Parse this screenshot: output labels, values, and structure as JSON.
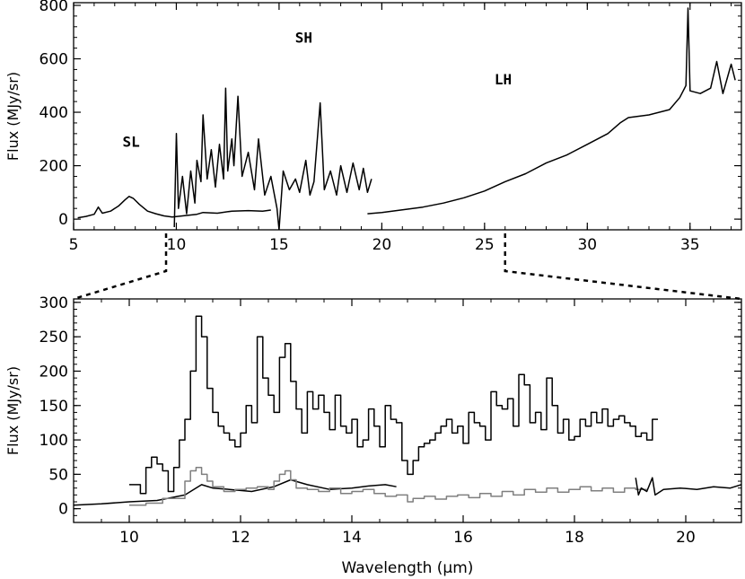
{
  "chart_data": [
    {
      "type": "line",
      "panel": "top",
      "title": "",
      "xlabel": "",
      "ylabel": "Flux (MJy/sr)",
      "xlim": [
        5,
        37.5
      ],
      "ylim": [
        -40,
        810
      ],
      "xticks": [
        5,
        10,
        15,
        20,
        25,
        30,
        35
      ],
      "yticks": [
        0,
        200,
        400,
        600,
        800
      ],
      "annotations": [
        {
          "text": "SL",
          "x": 7.8,
          "y": 270
        },
        {
          "text": "SH",
          "x": 16.2,
          "y": 660
        },
        {
          "text": "LH",
          "x": 25.9,
          "y": 505
        }
      ],
      "series": [
        {
          "module": "SL",
          "color": "#000000",
          "points": [
            [
              5.2,
              5
            ],
            [
              5.6,
              10
            ],
            [
              6.0,
              18
            ],
            [
              6.2,
              45
            ],
            [
              6.4,
              22
            ],
            [
              6.8,
              30
            ],
            [
              7.2,
              50
            ],
            [
              7.5,
              72
            ],
            [
              7.7,
              85
            ],
            [
              7.9,
              78
            ],
            [
              8.2,
              55
            ],
            [
              8.6,
              30
            ],
            [
              9.0,
              20
            ],
            [
              9.4,
              12
            ],
            [
              9.8,
              8
            ],
            [
              10.3,
              12
            ],
            [
              11.0,
              18
            ],
            [
              11.3,
              25
            ],
            [
              12.0,
              22
            ],
            [
              12.7,
              30
            ],
            [
              13.5,
              32
            ],
            [
              14.2,
              30
            ],
            [
              14.6,
              34
            ]
          ]
        },
        {
          "module": "SH",
          "color": "#000000",
          "points": [
            [
              9.9,
              -30
            ],
            [
              10.0,
              320
            ],
            [
              10.1,
              40
            ],
            [
              10.3,
              160
            ],
            [
              10.5,
              20
            ],
            [
              10.7,
              180
            ],
            [
              10.9,
              60
            ],
            [
              11.0,
              220
            ],
            [
              11.2,
              140
            ],
            [
              11.3,
              390
            ],
            [
              11.5,
              150
            ],
            [
              11.7,
              260
            ],
            [
              11.9,
              120
            ],
            [
              12.1,
              280
            ],
            [
              12.3,
              150
            ],
            [
              12.4,
              490
            ],
            [
              12.5,
              180
            ],
            [
              12.7,
              300
            ],
            [
              12.8,
              200
            ],
            [
              13.0,
              460
            ],
            [
              13.2,
              160
            ],
            [
              13.5,
              250
            ],
            [
              13.8,
              110
            ],
            [
              14.0,
              300
            ],
            [
              14.3,
              90
            ],
            [
              14.6,
              160
            ],
            [
              14.9,
              40
            ],
            [
              15.0,
              -40
            ],
            [
              15.2,
              180
            ],
            [
              15.5,
              110
            ],
            [
              15.8,
              150
            ],
            [
              16.0,
              100
            ],
            [
              16.3,
              220
            ],
            [
              16.5,
              90
            ],
            [
              16.7,
              140
            ],
            [
              17.0,
              435
            ],
            [
              17.2,
              110
            ],
            [
              17.5,
              180
            ],
            [
              17.8,
              90
            ],
            [
              18.0,
              200
            ],
            [
              18.3,
              100
            ],
            [
              18.6,
              210
            ],
            [
              18.9,
              110
            ],
            [
              19.1,
              190
            ],
            [
              19.3,
              100
            ],
            [
              19.5,
              150
            ]
          ]
        },
        {
          "module": "LH",
          "color": "#000000",
          "points": [
            [
              19.3,
              20
            ],
            [
              20.0,
              25
            ],
            [
              21.0,
              35
            ],
            [
              22.0,
              45
            ],
            [
              23.0,
              60
            ],
            [
              24.0,
              80
            ],
            [
              25.0,
              105
            ],
            [
              26.0,
              140
            ],
            [
              27.0,
              170
            ],
            [
              28.0,
              210
            ],
            [
              29.0,
              240
            ],
            [
              30.0,
              280
            ],
            [
              31.0,
              320
            ],
            [
              31.6,
              360
            ],
            [
              32.0,
              380
            ],
            [
              33.0,
              390
            ],
            [
              34.0,
              410
            ],
            [
              34.5,
              455
            ],
            [
              34.8,
              500
            ],
            [
              34.9,
              790
            ],
            [
              35.0,
              480
            ],
            [
              35.5,
              470
            ],
            [
              36.0,
              490
            ],
            [
              36.3,
              590
            ],
            [
              36.6,
              470
            ],
            [
              37.0,
              580
            ],
            [
              37.2,
              520
            ]
          ]
        }
      ]
    },
    {
      "type": "line",
      "panel": "bottom",
      "title": "",
      "xlabel": "Wavelength (μm)",
      "ylabel": "Flux (MJy/sr)",
      "xlim": [
        9,
        21
      ],
      "ylim": [
        -20,
        305
      ],
      "xticks": [
        10,
        12,
        14,
        16,
        18,
        20
      ],
      "yticks": [
        0,
        50,
        100,
        150,
        200,
        250,
        300
      ],
      "series": [
        {
          "module": "SH (black, stepped)",
          "color": "#000000",
          "steps": [
            [
              10.0,
              35
            ],
            [
              10.2,
              22
            ],
            [
              10.3,
              60
            ],
            [
              10.4,
              75
            ],
            [
              10.5,
              65
            ],
            [
              10.6,
              55
            ],
            [
              10.7,
              25
            ],
            [
              10.8,
              60
            ],
            [
              10.9,
              100
            ],
            [
              11.0,
              130
            ],
            [
              11.1,
              200
            ],
            [
              11.2,
              280
            ],
            [
              11.3,
              250
            ],
            [
              11.4,
              175
            ],
            [
              11.5,
              140
            ],
            [
              11.6,
              120
            ],
            [
              11.7,
              110
            ],
            [
              11.8,
              100
            ],
            [
              11.9,
              90
            ],
            [
              12.0,
              110
            ],
            [
              12.1,
              150
            ],
            [
              12.2,
              125
            ],
            [
              12.3,
              250
            ],
            [
              12.4,
              190
            ],
            [
              12.5,
              165
            ],
            [
              12.6,
              140
            ],
            [
              12.7,
              220
            ],
            [
              12.8,
              240
            ],
            [
              12.9,
              185
            ],
            [
              13.0,
              145
            ],
            [
              13.1,
              110
            ],
            [
              13.2,
              170
            ],
            [
              13.3,
              145
            ],
            [
              13.4,
              165
            ],
            [
              13.5,
              140
            ],
            [
              13.6,
              115
            ],
            [
              13.7,
              165
            ],
            [
              13.8,
              120
            ],
            [
              13.9,
              110
            ],
            [
              14.0,
              130
            ],
            [
              14.1,
              90
            ],
            [
              14.2,
              100
            ],
            [
              14.3,
              145
            ],
            [
              14.4,
              120
            ],
            [
              14.5,
              90
            ],
            [
              14.6,
              150
            ],
            [
              14.7,
              130
            ],
            [
              14.8,
              125
            ],
            [
              14.9,
              70
            ],
            [
              15.0,
              50
            ],
            [
              15.1,
              70
            ],
            [
              15.2,
              90
            ],
            [
              15.3,
              95
            ],
            [
              15.4,
              100
            ],
            [
              15.5,
              110
            ],
            [
              15.6,
              120
            ],
            [
              15.7,
              130
            ],
            [
              15.8,
              110
            ],
            [
              15.9,
              120
            ],
            [
              16.0,
              95
            ],
            [
              16.1,
              140
            ],
            [
              16.2,
              125
            ],
            [
              16.3,
              120
            ],
            [
              16.4,
              100
            ],
            [
              16.5,
              170
            ],
            [
              16.6,
              150
            ],
            [
              16.7,
              145
            ],
            [
              16.8,
              160
            ],
            [
              16.9,
              120
            ],
            [
              17.0,
              195
            ],
            [
              17.1,
              180
            ],
            [
              17.2,
              125
            ],
            [
              17.3,
              140
            ],
            [
              17.4,
              115
            ],
            [
              17.5,
              190
            ],
            [
              17.6,
              150
            ],
            [
              17.7,
              110
            ],
            [
              17.8,
              130
            ],
            [
              17.9,
              100
            ],
            [
              18.0,
              105
            ],
            [
              18.1,
              130
            ],
            [
              18.2,
              120
            ],
            [
              18.3,
              140
            ],
            [
              18.4,
              125
            ],
            [
              18.5,
              145
            ],
            [
              18.6,
              120
            ],
            [
              18.7,
              130
            ],
            [
              18.8,
              135
            ],
            [
              18.9,
              125
            ],
            [
              19.0,
              120
            ],
            [
              19.1,
              105
            ],
            [
              19.2,
              110
            ],
            [
              19.3,
              100
            ],
            [
              19.4,
              130
            ]
          ],
          "end": 19.5
        },
        {
          "module": "SL (black, smooth)",
          "color": "#000000",
          "points": [
            [
              9.0,
              5
            ],
            [
              9.5,
              7
            ],
            [
              10.0,
              10
            ],
            [
              10.5,
              12
            ],
            [
              11.0,
              20
            ],
            [
              11.3,
              35
            ],
            [
              11.5,
              30
            ],
            [
              11.8,
              28
            ],
            [
              12.2,
              25
            ],
            [
              12.6,
              32
            ],
            [
              12.9,
              42
            ],
            [
              13.2,
              35
            ],
            [
              13.6,
              28
            ],
            [
              14.0,
              30
            ],
            [
              14.3,
              33
            ],
            [
              14.6,
              35
            ],
            [
              14.8,
              32
            ]
          ]
        },
        {
          "module": "LH (gray, stepped)",
          "color": "#7f7f7f",
          "steps": [
            [
              10.0,
              5
            ],
            [
              10.3,
              8
            ],
            [
              10.6,
              15
            ],
            [
              11.0,
              40
            ],
            [
              11.1,
              55
            ],
            [
              11.2,
              60
            ],
            [
              11.3,
              50
            ],
            [
              11.4,
              40
            ],
            [
              11.5,
              32
            ],
            [
              11.7,
              25
            ],
            [
              11.9,
              28
            ],
            [
              12.1,
              30
            ],
            [
              12.3,
              32
            ],
            [
              12.5,
              28
            ],
            [
              12.6,
              40
            ],
            [
              12.7,
              50
            ],
            [
              12.8,
              55
            ],
            [
              12.9,
              42
            ],
            [
              13.0,
              30
            ],
            [
              13.2,
              28
            ],
            [
              13.4,
              25
            ],
            [
              13.6,
              30
            ],
            [
              13.8,
              22
            ],
            [
              14.0,
              25
            ],
            [
              14.2,
              28
            ],
            [
              14.4,
              22
            ],
            [
              14.6,
              18
            ],
            [
              14.8,
              20
            ],
            [
              15.0,
              10
            ],
            [
              15.1,
              15
            ],
            [
              15.3,
              18
            ],
            [
              15.5,
              14
            ],
            [
              15.7,
              18
            ],
            [
              15.9,
              20
            ],
            [
              16.1,
              16
            ],
            [
              16.3,
              22
            ],
            [
              16.5,
              18
            ],
            [
              16.7,
              25
            ],
            [
              16.9,
              20
            ],
            [
              17.1,
              28
            ],
            [
              17.3,
              24
            ],
            [
              17.5,
              30
            ],
            [
              17.7,
              24
            ],
            [
              17.9,
              28
            ],
            [
              18.1,
              32
            ],
            [
              18.3,
              26
            ],
            [
              18.5,
              30
            ],
            [
              18.7,
              24
            ],
            [
              18.9,
              30
            ],
            [
              19.1,
              28
            ]
          ],
          "end": 19.3
        },
        {
          "module": "LH continuation (black)",
          "color": "#000000",
          "points": [
            [
              19.1,
              45
            ],
            [
              19.15,
              20
            ],
            [
              19.2,
              30
            ],
            [
              19.3,
              25
            ],
            [
              19.4,
              45
            ],
            [
              19.45,
              20
            ],
            [
              19.6,
              28
            ],
            [
              19.9,
              30
            ],
            [
              20.2,
              28
            ],
            [
              20.5,
              32
            ],
            [
              20.8,
              30
            ],
            [
              21.0,
              35
            ]
          ]
        }
      ]
    }
  ]
}
